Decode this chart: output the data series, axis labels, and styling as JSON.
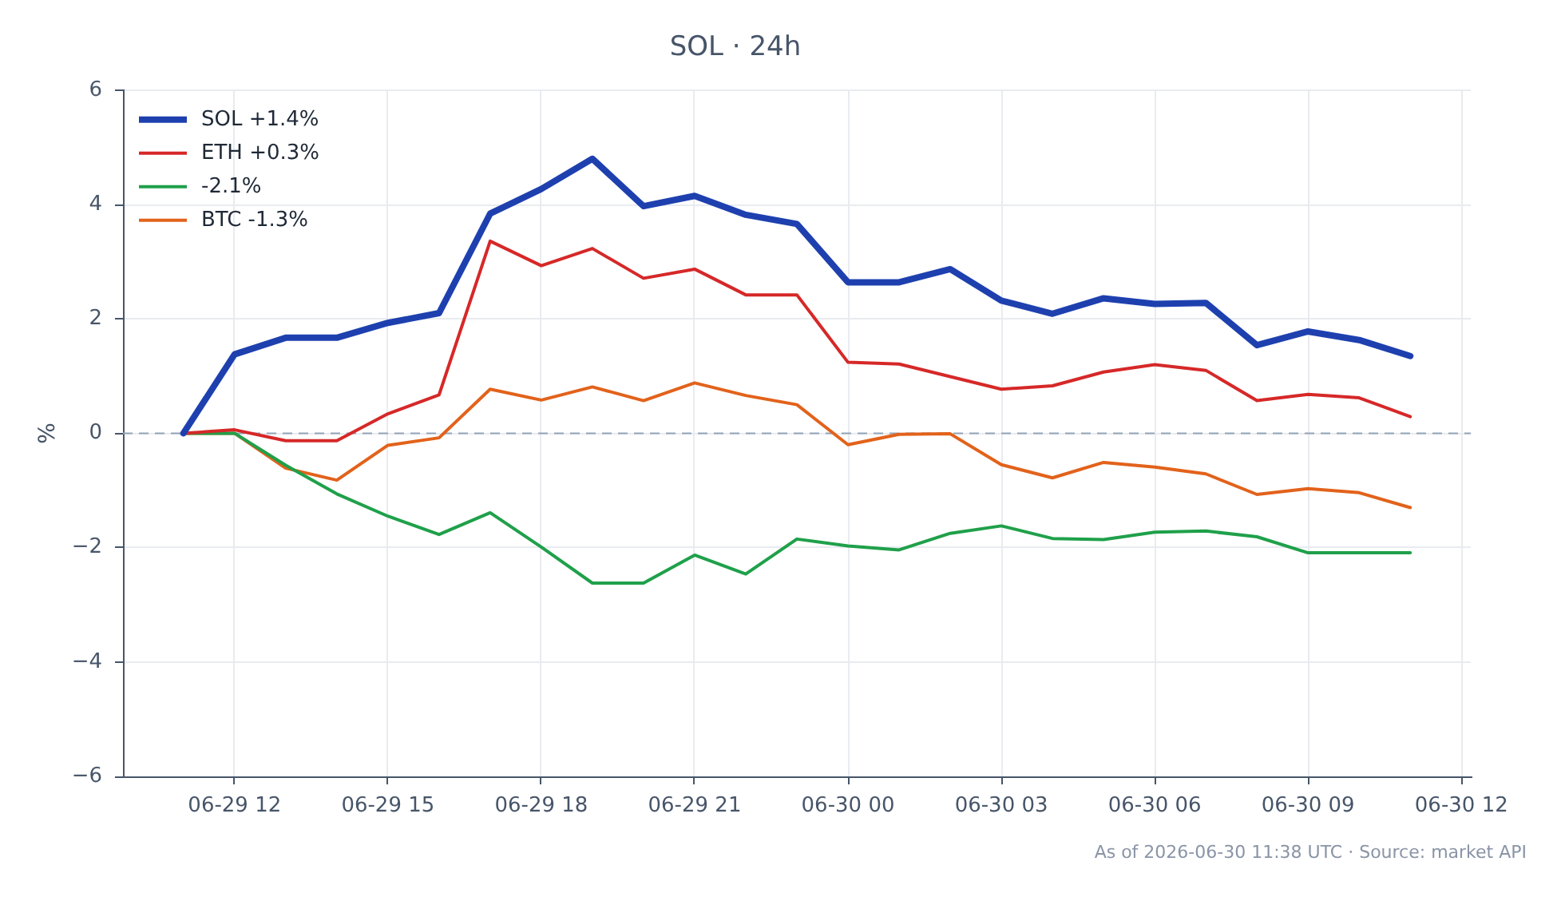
{
  "chart_data": {
    "type": "line",
    "title": "SOL · 24h",
    "ylabel": "%",
    "x": [
      "2026-06-29T11:00",
      "2026-06-29T12:00",
      "2026-06-29T13:00",
      "2026-06-29T14:00",
      "2026-06-29T15:00",
      "2026-06-29T16:00",
      "2026-06-29T17:00",
      "2026-06-29T18:00",
      "2026-06-29T19:00",
      "2026-06-29T20:00",
      "2026-06-29T21:00",
      "2026-06-29T22:00",
      "2026-06-29T23:00",
      "2026-06-30T00:00",
      "2026-06-30T01:00",
      "2026-06-30T02:00",
      "2026-06-30T03:00",
      "2026-06-30T04:00",
      "2026-06-30T05:00",
      "2026-06-30T06:00",
      "2026-06-30T07:00",
      "2026-06-30T08:00",
      "2026-06-30T09:00",
      "2026-06-30T10:00",
      "2026-06-30T11:00"
    ],
    "series": [
      {
        "name": "SOL +1.4%",
        "color": "#1e40af",
        "values": [
          0,
          1.38,
          1.67,
          1.67,
          1.93,
          2.1,
          3.84,
          4.27,
          4.8,
          3.97,
          4.15,
          3.82,
          3.66,
          2.64,
          2.64,
          2.87,
          2.32,
          2.09,
          2.36,
          2.26,
          2.28,
          1.54,
          1.78,
          1.63,
          1.35
        ]
      },
      {
        "name": "ETH +0.3%",
        "color": "#d62828",
        "values": [
          0,
          0.06,
          -0.13,
          -0.13,
          0.34,
          0.67,
          3.36,
          2.93,
          3.23,
          2.71,
          2.87,
          2.42,
          2.42,
          1.24,
          1.21,
          0.99,
          0.77,
          0.83,
          1.07,
          1.2,
          1.1,
          0.57,
          0.68,
          0.62,
          0.29
        ]
      },
      {
        "name": "-2.1%",
        "color": "#1fa04a",
        "values": [
          0,
          0,
          -0.56,
          -1.06,
          -1.45,
          -1.77,
          -1.39,
          -1.99,
          -2.62,
          -2.62,
          -2.13,
          -2.46,
          -1.85,
          -1.97,
          -2.04,
          -1.75,
          -1.62,
          -1.84,
          -1.86,
          -1.73,
          -1.71,
          -1.81,
          -2.09,
          -2.09,
          -2.09
        ]
      },
      {
        "name": "BTC -1.3%",
        "color": "#e2621b",
        "values": [
          0,
          0,
          -0.61,
          -0.82,
          -0.21,
          -0.08,
          0.77,
          0.58,
          0.81,
          0.57,
          0.88,
          0.66,
          0.5,
          -0.2,
          -0.02,
          -0.01,
          -0.55,
          -0.78,
          -0.51,
          -0.59,
          -0.71,
          -1.07,
          -0.97,
          -1.04,
          -1.3
        ]
      }
    ],
    "xlim": [
      "2026-06-29T09:49",
      "2026-06-30T12:11"
    ],
    "xticks": [
      {
        "value": "2026-06-29T12:00",
        "label": "06-29 12"
      },
      {
        "value": "2026-06-29T15:00",
        "label": "06-29 15"
      },
      {
        "value": "2026-06-29T18:00",
        "label": "06-29 18"
      },
      {
        "value": "2026-06-29T21:00",
        "label": "06-29 21"
      },
      {
        "value": "2026-06-30T00:00",
        "label": "06-30 00"
      },
      {
        "value": "2026-06-30T03:00",
        "label": "06-30 03"
      },
      {
        "value": "2026-06-30T06:00",
        "label": "06-30 06"
      },
      {
        "value": "2026-06-30T09:00",
        "label": "06-30 09"
      },
      {
        "value": "2026-06-30T12:00",
        "label": "06-30 12"
      }
    ],
    "ylim": [
      -6,
      6
    ],
    "yticks": [
      {
        "value": -6,
        "label": "−6"
      },
      {
        "value": -4,
        "label": "−4"
      },
      {
        "value": -2,
        "label": "−2"
      },
      0,
      2,
      4,
      6
    ],
    "ref_lines": [
      {
        "axis": "y",
        "value": 0,
        "color": "#94a3b8",
        "line_style": "dashed"
      }
    ],
    "annotations": [
      "As of 2026-06-30 11:38 UTC · Source: market API"
    ],
    "grid": true,
    "legend": "top left",
    "marker": "none",
    "line_style": "solid"
  }
}
